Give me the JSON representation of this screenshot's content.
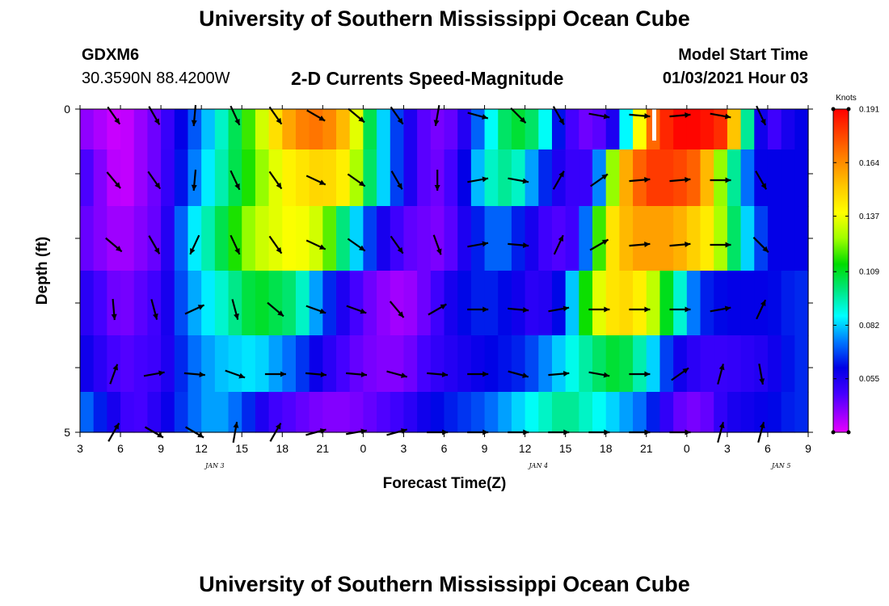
{
  "title_top": "University of Southern Mississippi Ocean Cube",
  "title_bottom": "University of Southern Mississippi Ocean Cube",
  "station": {
    "id": "GDXM6",
    "coords": "30.3590N 88.4200W"
  },
  "subtitle": "2-D Currents Speed-Magnitude",
  "model_start": {
    "label": "Model Start Time",
    "value": "01/03/2021 Hour 03"
  },
  "chart_data": {
    "type": "heatmap",
    "title": "2-D Currents Speed-Magnitude",
    "xlabel": "Forecast Time(Z)",
    "ylabel": "Depth (ft)",
    "x_tick_labels": [
      "3",
      "6",
      "9",
      "12",
      "15",
      "18",
      "21",
      "0",
      "3",
      "6",
      "9",
      "12",
      "15",
      "18",
      "21",
      "0",
      "3",
      "6",
      "9"
    ],
    "date_labels": [
      {
        "text": "JAN 3",
        "hour_index": 10
      },
      {
        "text": "JAN 4",
        "hour_index": 34
      },
      {
        "text": "JAN 5",
        "hour_index": 52
      }
    ],
    "y_tick_labels": [
      {
        "text": "0",
        "depth": 0
      },
      {
        "text": "5",
        "depth": 5
      }
    ],
    "ylim": [
      0,
      5
    ],
    "hours": 54,
    "depth_levels": [
      0.25,
      1.0,
      2.0,
      3.0,
      4.0,
      4.75
    ],
    "colorbar": {
      "unit": "Knots",
      "min": 0.028,
      "max": 0.191,
      "ticks": [
        "0.191",
        "0.164",
        "0.137",
        "0.109",
        "0.082",
        "0.055"
      ]
    },
    "speed_profiles": [
      [
        [
          0,
          0.04
        ],
        [
          3,
          0.03
        ],
        [
          6,
          0.045
        ],
        [
          9,
          0.075
        ],
        [
          12,
          0.11
        ],
        [
          14,
          0.14
        ],
        [
          16,
          0.165
        ],
        [
          18,
          0.17
        ],
        [
          20,
          0.15
        ],
        [
          22,
          0.09
        ],
        [
          24,
          0.06
        ],
        [
          26,
          0.04
        ],
        [
          28,
          0.045
        ],
        [
          30,
          0.08
        ],
        [
          32,
          0.11
        ],
        [
          34,
          0.1
        ],
        [
          36,
          0.05
        ],
        [
          38,
          0.04
        ],
        [
          40,
          0.06
        ],
        [
          42,
          0.165
        ],
        [
          44,
          0.19
        ],
        [
          46,
          0.19
        ],
        [
          48,
          0.18
        ],
        [
          50,
          0.07
        ],
        [
          51,
          0.045
        ],
        [
          53,
          0.06
        ]
      ],
      [
        [
          0,
          0.05
        ],
        [
          3,
          0.03
        ],
        [
          6,
          0.045
        ],
        [
          9,
          0.08
        ],
        [
          12,
          0.11
        ],
        [
          15,
          0.14
        ],
        [
          18,
          0.15
        ],
        [
          20,
          0.14
        ],
        [
          22,
          0.09
        ],
        [
          24,
          0.06
        ],
        [
          26,
          0.04
        ],
        [
          28,
          0.05
        ],
        [
          30,
          0.09
        ],
        [
          32,
          0.1
        ],
        [
          34,
          0.07
        ],
        [
          36,
          0.05
        ],
        [
          38,
          0.05
        ],
        [
          40,
          0.15
        ],
        [
          42,
          0.18
        ],
        [
          44,
          0.18
        ],
        [
          46,
          0.17
        ],
        [
          48,
          0.11
        ],
        [
          50,
          0.06
        ],
        [
          53,
          0.06
        ]
      ],
      [
        [
          0,
          0.045
        ],
        [
          3,
          0.035
        ],
        [
          6,
          0.045
        ],
        [
          8,
          0.08
        ],
        [
          11,
          0.11
        ],
        [
          13,
          0.13
        ],
        [
          16,
          0.14
        ],
        [
          18,
          0.13
        ],
        [
          20,
          0.09
        ],
        [
          22,
          0.06
        ],
        [
          24,
          0.045
        ],
        [
          27,
          0.04
        ],
        [
          29,
          0.06
        ],
        [
          31,
          0.075
        ],
        [
          33,
          0.06
        ],
        [
          35,
          0.045
        ],
        [
          37,
          0.05
        ],
        [
          39,
          0.14
        ],
        [
          41,
          0.16
        ],
        [
          44,
          0.16
        ],
        [
          47,
          0.14
        ],
        [
          49,
          0.09
        ],
        [
          51,
          0.06
        ],
        [
          53,
          0.06
        ]
      ],
      [
        [
          0,
          0.055
        ],
        [
          3,
          0.04
        ],
        [
          6,
          0.05
        ],
        [
          8,
          0.075
        ],
        [
          11,
          0.095
        ],
        [
          13,
          0.11
        ],
        [
          16,
          0.1
        ],
        [
          18,
          0.07
        ],
        [
          20,
          0.05
        ],
        [
          22,
          0.04
        ],
        [
          24,
          0.035
        ],
        [
          26,
          0.045
        ],
        [
          28,
          0.06
        ],
        [
          30,
          0.065
        ],
        [
          32,
          0.06
        ],
        [
          34,
          0.05
        ],
        [
          36,
          0.065
        ],
        [
          38,
          0.13
        ],
        [
          40,
          0.15
        ],
        [
          42,
          0.14
        ],
        [
          44,
          0.1
        ],
        [
          46,
          0.065
        ],
        [
          48,
          0.06
        ],
        [
          51,
          0.06
        ],
        [
          53,
          0.065
        ]
      ],
      [
        [
          0,
          0.06
        ],
        [
          3,
          0.045
        ],
        [
          6,
          0.05
        ],
        [
          8,
          0.07
        ],
        [
          10,
          0.08
        ],
        [
          13,
          0.085
        ],
        [
          16,
          0.07
        ],
        [
          18,
          0.055
        ],
        [
          20,
          0.045
        ],
        [
          22,
          0.04
        ],
        [
          24,
          0.04
        ],
        [
          26,
          0.05
        ],
        [
          28,
          0.055
        ],
        [
          30,
          0.06
        ],
        [
          33,
          0.065
        ],
        [
          36,
          0.085
        ],
        [
          38,
          0.1
        ],
        [
          40,
          0.11
        ],
        [
          42,
          0.09
        ],
        [
          44,
          0.06
        ],
        [
          46,
          0.05
        ],
        [
          48,
          0.05
        ],
        [
          51,
          0.055
        ],
        [
          53,
          0.065
        ]
      ],
      [
        [
          0,
          0.075
        ],
        [
          2,
          0.06
        ],
        [
          4,
          0.045
        ],
        [
          6,
          0.055
        ],
        [
          8,
          0.07
        ],
        [
          10,
          0.08
        ],
        [
          12,
          0.07
        ],
        [
          14,
          0.05
        ],
        [
          16,
          0.045
        ],
        [
          18,
          0.04
        ],
        [
          20,
          0.04
        ],
        [
          22,
          0.045
        ],
        [
          24,
          0.05
        ],
        [
          26,
          0.06
        ],
        [
          28,
          0.065
        ],
        [
          30,
          0.07
        ],
        [
          32,
          0.08
        ],
        [
          34,
          0.09
        ],
        [
          36,
          0.1
        ],
        [
          38,
          0.09
        ],
        [
          40,
          0.08
        ],
        [
          42,
          0.07
        ],
        [
          44,
          0.045
        ],
        [
          46,
          0.04
        ],
        [
          48,
          0.055
        ],
        [
          51,
          0.06
        ],
        [
          53,
          0.065
        ]
      ]
    ],
    "vector_hours": [
      2.5,
      5.5,
      8.5,
      11.5,
      14.5,
      17.5,
      20.5,
      23.5,
      26.5,
      29.5,
      32.5,
      35.5,
      38.5,
      41.5,
      44.5,
      47.5,
      50.5
    ],
    "vector_depths": [
      0.1,
      1.1,
      2.1,
      3.1,
      4.1,
      5.0
    ],
    "vector_angles_deg": [
      [
        55,
        60,
        95,
        65,
        55,
        30,
        40,
        55,
        100,
        15,
        45,
        60,
        10,
        5,
        355,
        10,
        65
      ],
      [
        50,
        55,
        95,
        65,
        55,
        25,
        35,
        60,
        90,
        350,
        10,
        300,
        325,
        355,
        355,
        0,
        60
      ],
      [
        40,
        60,
        115,
        65,
        55,
        25,
        35,
        55,
        70,
        350,
        5,
        295,
        330,
        355,
        355,
        0,
        45
      ],
      [
        85,
        75,
        335,
        75,
        40,
        20,
        20,
        50,
        330,
        0,
        5,
        350,
        0,
        0,
        0,
        350,
        295
      ],
      [
        290,
        350,
        5,
        20,
        0,
        5,
        5,
        15,
        5,
        0,
        15,
        355,
        10,
        0,
        325,
        285,
        80
      ],
      [
        300,
        30,
        30,
        280,
        300,
        345,
        350,
        345,
        0,
        0,
        0,
        0,
        0,
        0,
        0,
        285,
        285
      ]
    ]
  }
}
